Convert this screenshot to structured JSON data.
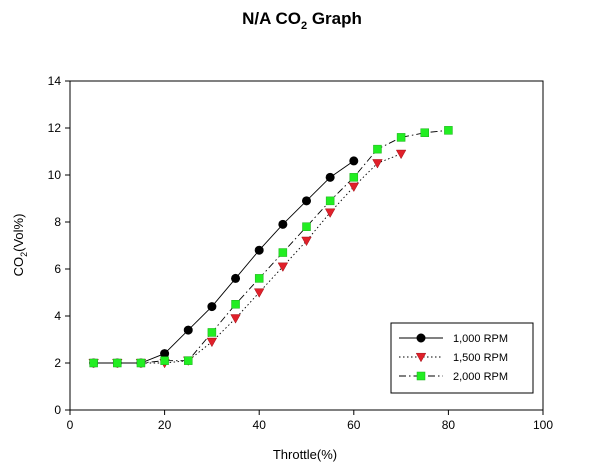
{
  "chart_data": {
    "type": "line",
    "title": "N/A CO",
    "title_subscript": "2",
    "title_suffix": " Graph",
    "xlabel": "Throttle(%)",
    "ylabel": "CO",
    "ylabel_subscript": "2",
    "ylabel_suffix": "(Vol%)",
    "xlim": [
      0,
      100
    ],
    "ylim": [
      0,
      14
    ],
    "xticks": [
      0,
      20,
      40,
      60,
      80,
      100
    ],
    "yticks": [
      0,
      2,
      4,
      6,
      8,
      10,
      12,
      14
    ],
    "grid": false,
    "legend_position": "bottom-right",
    "series": [
      {
        "name": "1,000 RPM",
        "color": "#000000",
        "marker": "circle",
        "line": "solid",
        "points": [
          [
            5,
            2.0
          ],
          [
            10,
            2.0
          ],
          [
            15,
            2.0
          ],
          [
            20,
            2.4
          ],
          [
            25,
            3.4
          ],
          [
            30,
            4.4
          ],
          [
            35,
            5.6
          ],
          [
            40,
            6.8
          ],
          [
            45,
            7.9
          ],
          [
            50,
            8.9
          ],
          [
            55,
            9.9
          ],
          [
            60,
            10.6
          ]
        ]
      },
      {
        "name": "1,500 RPM",
        "color": "#e0202a",
        "marker": "triangle-down",
        "line": "dotted",
        "points": [
          [
            5,
            2.0
          ],
          [
            10,
            2.0
          ],
          [
            15,
            2.0
          ],
          [
            20,
            2.0
          ],
          [
            25,
            2.1
          ],
          [
            30,
            2.9
          ],
          [
            35,
            3.9
          ],
          [
            40,
            5.0
          ],
          [
            45,
            6.1
          ],
          [
            50,
            7.2
          ],
          [
            55,
            8.4
          ],
          [
            60,
            9.5
          ],
          [
            65,
            10.5
          ],
          [
            70,
            10.9
          ]
        ]
      },
      {
        "name": "2,000 RPM",
        "color": "#22ee22",
        "marker": "square",
        "line": "dash-dot",
        "points": [
          [
            5,
            2.0
          ],
          [
            10,
            2.0
          ],
          [
            15,
            2.0
          ],
          [
            20,
            2.1
          ],
          [
            25,
            2.1
          ],
          [
            30,
            3.3
          ],
          [
            35,
            4.5
          ],
          [
            40,
            5.6
          ],
          [
            45,
            6.7
          ],
          [
            50,
            7.8
          ],
          [
            55,
            8.9
          ],
          [
            60,
            9.9
          ],
          [
            65,
            11.1
          ],
          [
            70,
            11.6
          ],
          [
            75,
            11.8
          ],
          [
            80,
            11.9
          ]
        ]
      }
    ]
  }
}
